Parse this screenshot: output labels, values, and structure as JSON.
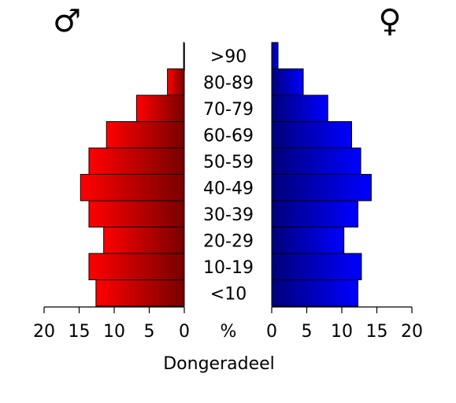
{
  "chart_data": {
    "type": "bar",
    "title": "Dongeradeel",
    "categories": [
      "<10",
      "10-19",
      "20-29",
      "30-39",
      "40-49",
      "50-59",
      "60-69",
      "70-79",
      "80-89",
      ">90"
    ],
    "series": [
      {
        "name": "♂",
        "values": [
          12.6,
          13.6,
          11.5,
          13.6,
          14.8,
          13.6,
          11.1,
          6.8,
          2.4,
          0.1
        ],
        "color": "#d00000"
      },
      {
        "name": "♀",
        "values": [
          12.3,
          12.8,
          10.3,
          12.3,
          14.2,
          12.7,
          11.4,
          8.0,
          4.5,
          0.9
        ],
        "color": "#0000c8"
      }
    ],
    "x_ticks": [
      "20",
      "15",
      "10",
      "5",
      "0",
      "%",
      "0",
      "5",
      "10",
      "15",
      "20"
    ],
    "xlim": [
      0,
      20
    ],
    "grid": false
  }
}
